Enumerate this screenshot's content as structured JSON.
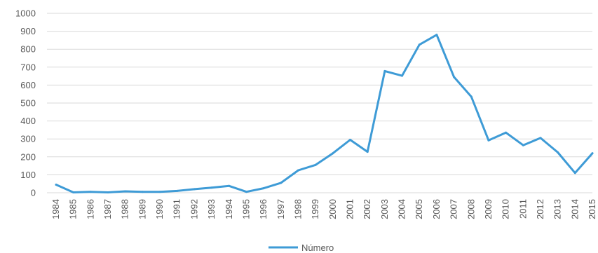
{
  "chart_data": {
    "type": "line",
    "x": [
      "1984",
      "1985",
      "1986",
      "1987",
      "1988",
      "1989",
      "1990",
      "1991",
      "1992",
      "1993",
      "1994",
      "1995",
      "1996",
      "1997",
      "1998",
      "1999",
      "2000",
      "2001",
      "2002",
      "2003",
      "2004",
      "2005",
      "2006",
      "2007",
      "2008",
      "2009",
      "2010",
      "2011",
      "2012",
      "2013",
      "2014",
      "2015"
    ],
    "series": [
      {
        "name": "Número",
        "color": "#3e9bd6",
        "values": [
          45,
          2,
          5,
          2,
          8,
          5,
          5,
          10,
          20,
          28,
          38,
          5,
          25,
          55,
          125,
          155,
          220,
          295,
          228,
          678,
          652,
          825,
          880,
          645,
          535,
          292,
          335,
          265,
          305,
          225,
          110,
          220
        ]
      }
    ],
    "yticks": [
      "0",
      "100",
      "200",
      "300",
      "400",
      "500",
      "600",
      "700",
      "800",
      "900",
      "1000"
    ],
    "ylim": [
      0,
      1000
    ],
    "grid": true,
    "legend": "bottom-center"
  }
}
